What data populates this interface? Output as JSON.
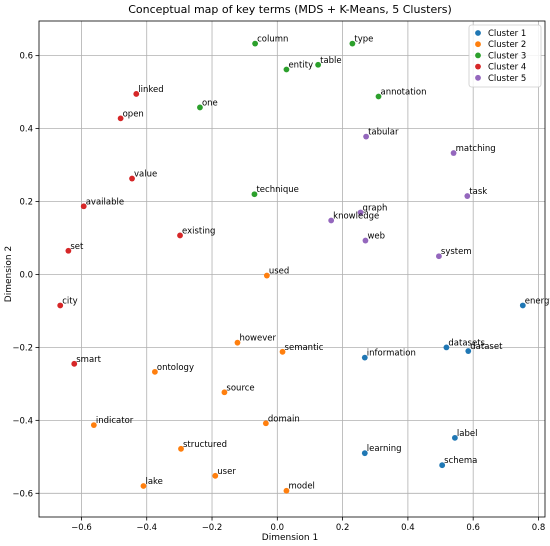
{
  "chart_data": {
    "type": "scatter",
    "title": "Conceptual map of key terms (MDS + K-Means, 5 Clusters)",
    "xlabel": "Dimension 1",
    "ylabel": "Dimension 2",
    "xlim": [
      -0.73,
      0.82
    ],
    "ylim": [
      -0.665,
      0.695
    ],
    "xticks": [
      -0.6,
      -0.4,
      -0.2,
      0.0,
      0.2,
      0.4,
      0.6,
      0.8
    ],
    "xtick_labels": [
      "−0.6",
      "−0.4",
      "−0.2",
      "0.0",
      "0.2",
      "0.4",
      "0.6",
      "0.8"
    ],
    "yticks": [
      -0.6,
      -0.4,
      -0.2,
      0.0,
      0.2,
      0.4,
      0.6
    ],
    "ytick_labels": [
      "−0.6",
      "−0.4",
      "−0.2",
      "0.0",
      "0.2",
      "0.4",
      "0.6"
    ],
    "grid": true,
    "legend_position": "top-right",
    "series": [
      {
        "name": "Cluster 1",
        "color": "#1f77b4",
        "points": [
          {
            "label": "energy",
            "x": 0.752,
            "y": -0.085
          },
          {
            "label": "datasets",
            "x": 0.518,
            "y": -0.2
          },
          {
            "label": "dataset",
            "x": 0.585,
            "y": -0.21
          },
          {
            "label": "information",
            "x": 0.268,
            "y": -0.228
          },
          {
            "label": "label",
            "x": 0.544,
            "y": -0.448
          },
          {
            "label": "learning",
            "x": 0.268,
            "y": -0.49
          },
          {
            "label": "schema",
            "x": 0.505,
            "y": -0.523
          }
        ]
      },
      {
        "name": "Cluster 2",
        "color": "#ff7f0e",
        "points": [
          {
            "label": "used",
            "x": -0.032,
            "y": -0.003
          },
          {
            "label": "however",
            "x": -0.122,
            "y": -0.187
          },
          {
            "label": "semantic",
            "x": 0.016,
            "y": -0.212
          },
          {
            "label": "ontology",
            "x": -0.375,
            "y": -0.267
          },
          {
            "label": "source",
            "x": -0.162,
            "y": -0.323
          },
          {
            "label": "indicator",
            "x": -0.562,
            "y": -0.413
          },
          {
            "label": "domain",
            "x": -0.035,
            "y": -0.408
          },
          {
            "label": "structured",
            "x": -0.295,
            "y": -0.478
          },
          {
            "label": "user",
            "x": -0.19,
            "y": -0.552
          },
          {
            "label": "lake",
            "x": -0.41,
            "y": -0.58
          },
          {
            "label": "model",
            "x": 0.028,
            "y": -0.593
          }
        ]
      },
      {
        "name": "Cluster 3",
        "color": "#2ca02c",
        "points": [
          {
            "label": "column",
            "x": -0.068,
            "y": 0.633
          },
          {
            "label": "type",
            "x": 0.23,
            "y": 0.633
          },
          {
            "label": "entity",
            "x": 0.028,
            "y": 0.562
          },
          {
            "label": "table",
            "x": 0.125,
            "y": 0.575
          },
          {
            "label": "annotation",
            "x": 0.31,
            "y": 0.488
          },
          {
            "label": "one",
            "x": -0.237,
            "y": 0.458
          },
          {
            "label": "technique",
            "x": -0.07,
            "y": 0.22
          }
        ]
      },
      {
        "name": "Cluster 4",
        "color": "#d62728",
        "points": [
          {
            "label": "linked",
            "x": -0.432,
            "y": 0.495
          },
          {
            "label": "open",
            "x": -0.48,
            "y": 0.428
          },
          {
            "label": "value",
            "x": -0.445,
            "y": 0.263
          },
          {
            "label": "available",
            "x": -0.593,
            "y": 0.187
          },
          {
            "label": "existing",
            "x": -0.298,
            "y": 0.107
          },
          {
            "label": "set",
            "x": -0.64,
            "y": 0.065
          },
          {
            "label": "city",
            "x": -0.665,
            "y": -0.085
          },
          {
            "label": "smart",
            "x": -0.622,
            "y": -0.245
          }
        ]
      },
      {
        "name": "Cluster 5",
        "color": "#9467bd",
        "points": [
          {
            "label": "tabular",
            "x": 0.272,
            "y": 0.378
          },
          {
            "label": "matching",
            "x": 0.54,
            "y": 0.333
          },
          {
            "label": "task",
            "x": 0.582,
            "y": 0.215
          },
          {
            "label": "graph",
            "x": 0.255,
            "y": 0.17
          },
          {
            "label": "knowledge",
            "x": 0.165,
            "y": 0.148
          },
          {
            "label": "web",
            "x": 0.27,
            "y": 0.093
          },
          {
            "label": "system",
            "x": 0.495,
            "y": 0.05
          }
        ]
      }
    ]
  }
}
